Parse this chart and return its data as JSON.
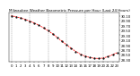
{
  "title": "Milwaukee Weather Barometric Pressure per Hour (Last 24 Hours)",
  "hours": [
    0,
    1,
    2,
    3,
    4,
    5,
    6,
    7,
    8,
    9,
    10,
    11,
    12,
    13,
    14,
    15,
    16,
    17,
    18,
    19,
    20,
    21,
    22,
    23
  ],
  "pressure": [
    30.1,
    30.06,
    30.01,
    29.95,
    29.88,
    29.8,
    29.71,
    29.6,
    29.48,
    29.35,
    29.2,
    29.05,
    28.9,
    28.76,
    28.63,
    28.52,
    28.44,
    28.38,
    28.35,
    28.34,
    28.36,
    28.42,
    28.5,
    28.58
  ],
  "line_color": "#ff0000",
  "marker_color": "#000000",
  "bg_color": "#ffffff",
  "grid_color": "#888888",
  "title_fontsize": 3.0,
  "tick_fontsize": 2.8,
  "ylim": [
    28.2,
    30.25
  ],
  "yticks": [
    28.3,
    28.5,
    28.7,
    28.9,
    29.1,
    29.3,
    29.5,
    29.7,
    29.9,
    30.1
  ],
  "xlabel_hours": [
    "0",
    "1",
    "2",
    "3",
    "4",
    "5",
    "6",
    "7",
    "8",
    "9",
    "10",
    "11",
    "12",
    "13",
    "14",
    "15",
    "16",
    "17",
    "18",
    "19",
    "20",
    "21",
    "22",
    "23"
  ],
  "vgrid_positions": [
    0,
    4,
    8,
    12,
    16,
    20
  ]
}
